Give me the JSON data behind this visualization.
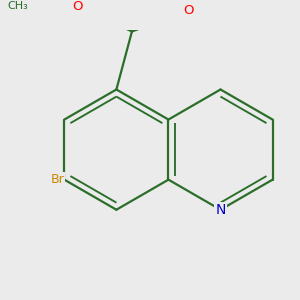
{
  "background_color": "#ebebeb",
  "bond_color": "#2a6e2a",
  "bond_width": 1.6,
  "atom_colors": {
    "O": "#ff0000",
    "N": "#0000cc",
    "Br": "#cc8800"
  },
  "font_size": 9.5,
  "ox": 0.54,
  "oy": 0.44,
  "scale": 0.225
}
